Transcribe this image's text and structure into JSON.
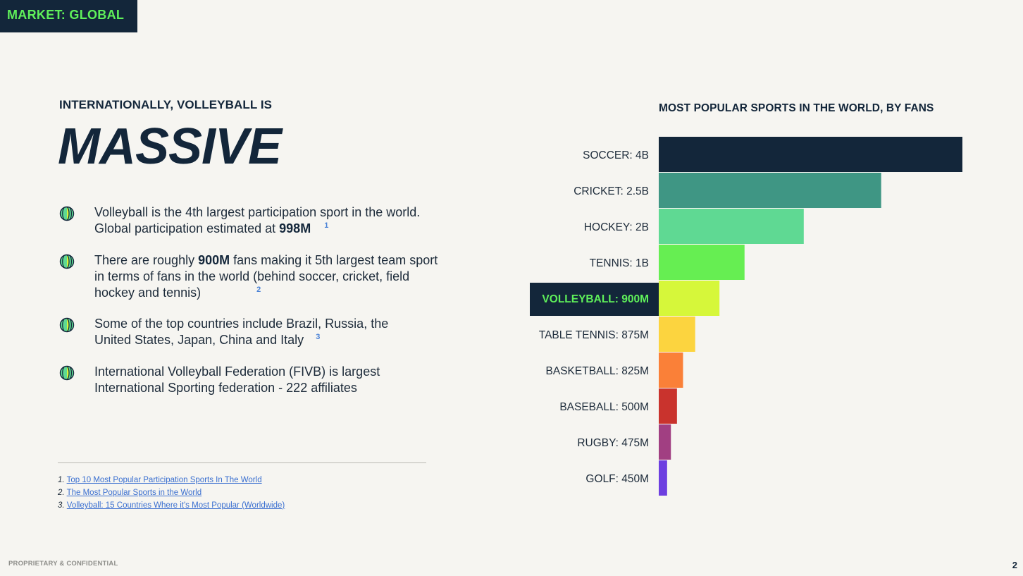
{
  "market_tag": "MARKET: GLOBAL",
  "kicker": "INTERNATIONALLY, VOLLEYBALL IS",
  "headline": "MASSIVE",
  "bullets": [
    {
      "before": "Volleyball is the 4th largest participation sport in the world. Global participation estimated at ",
      "bold": "998M",
      "after": "",
      "ref": "1"
    },
    {
      "before": "There are roughly ",
      "bold": "900M",
      "after": " fans making it 5th largest team sport in terms of fans in the world (behind soccer, cricket, field hockey and tennis)",
      "ref": "2"
    },
    {
      "before": "Some of the top countries include Brazil, Russia, the United States, Japan, China and Italy",
      "bold": "",
      "after": "",
      "ref": "3"
    },
    {
      "before": "International Volleyball Federation (FIVB) is largest International Sporting federation - 222 affiliates",
      "bold": "",
      "after": "",
      "ref": ""
    }
  ],
  "footnotes": [
    {
      "num": "1.",
      "text": "Top 10 Most Popular Participation Sports In The World"
    },
    {
      "num": "2.",
      "text": " The Most Popular Sports in the World"
    },
    {
      "num": "3.",
      "text": " Volleyball: 15 Countries Where it's Most Popular (Worldwide)"
    }
  ],
  "footer": {
    "confidential": "PROPRIETARY & CONFIDENTIAL",
    "page_number": "2"
  },
  "icon": "volleyball-icon",
  "chart_data": {
    "type": "bar",
    "orientation": "horizontal",
    "title": "MOST POPULAR SPORTS IN THE WORLD, BY FANS",
    "categories": [
      "SOCCER",
      "CRICKET",
      "HOCKEY",
      "TENNIS",
      "VOLLEYBALL",
      "TABLE TENNIS",
      "BASKETBALL",
      "BASEBALL",
      "RUGBY",
      "GOLF"
    ],
    "labels": [
      "SOCCER: 4B",
      "CRICKET: 2.5B",
      "HOCKEY: 2B",
      "TENNIS: 1B",
      "VOLLEYBALL: 900M",
      "TABLE TENNIS: 875M",
      "BASKETBALL: 825M",
      "BASEBALL: 500M",
      "RUGBY: 475M",
      "GOLF: 450M"
    ],
    "bar_lengths": [
      4000,
      2930,
      1910,
      1130,
      800,
      480,
      320,
      240,
      160,
      110
    ],
    "colors": [
      "#13263a",
      "#3f9684",
      "#5fd993",
      "#66ee52",
      "#d6f73a",
      "#fcd43f",
      "#fa8038",
      "#c9332d",
      "#a13f82",
      "#6d3fe0"
    ],
    "highlight_index": 4,
    "highlight_bg": "#13263a",
    "highlight_text": "#5ff05a",
    "grid": false,
    "legend": "none"
  }
}
